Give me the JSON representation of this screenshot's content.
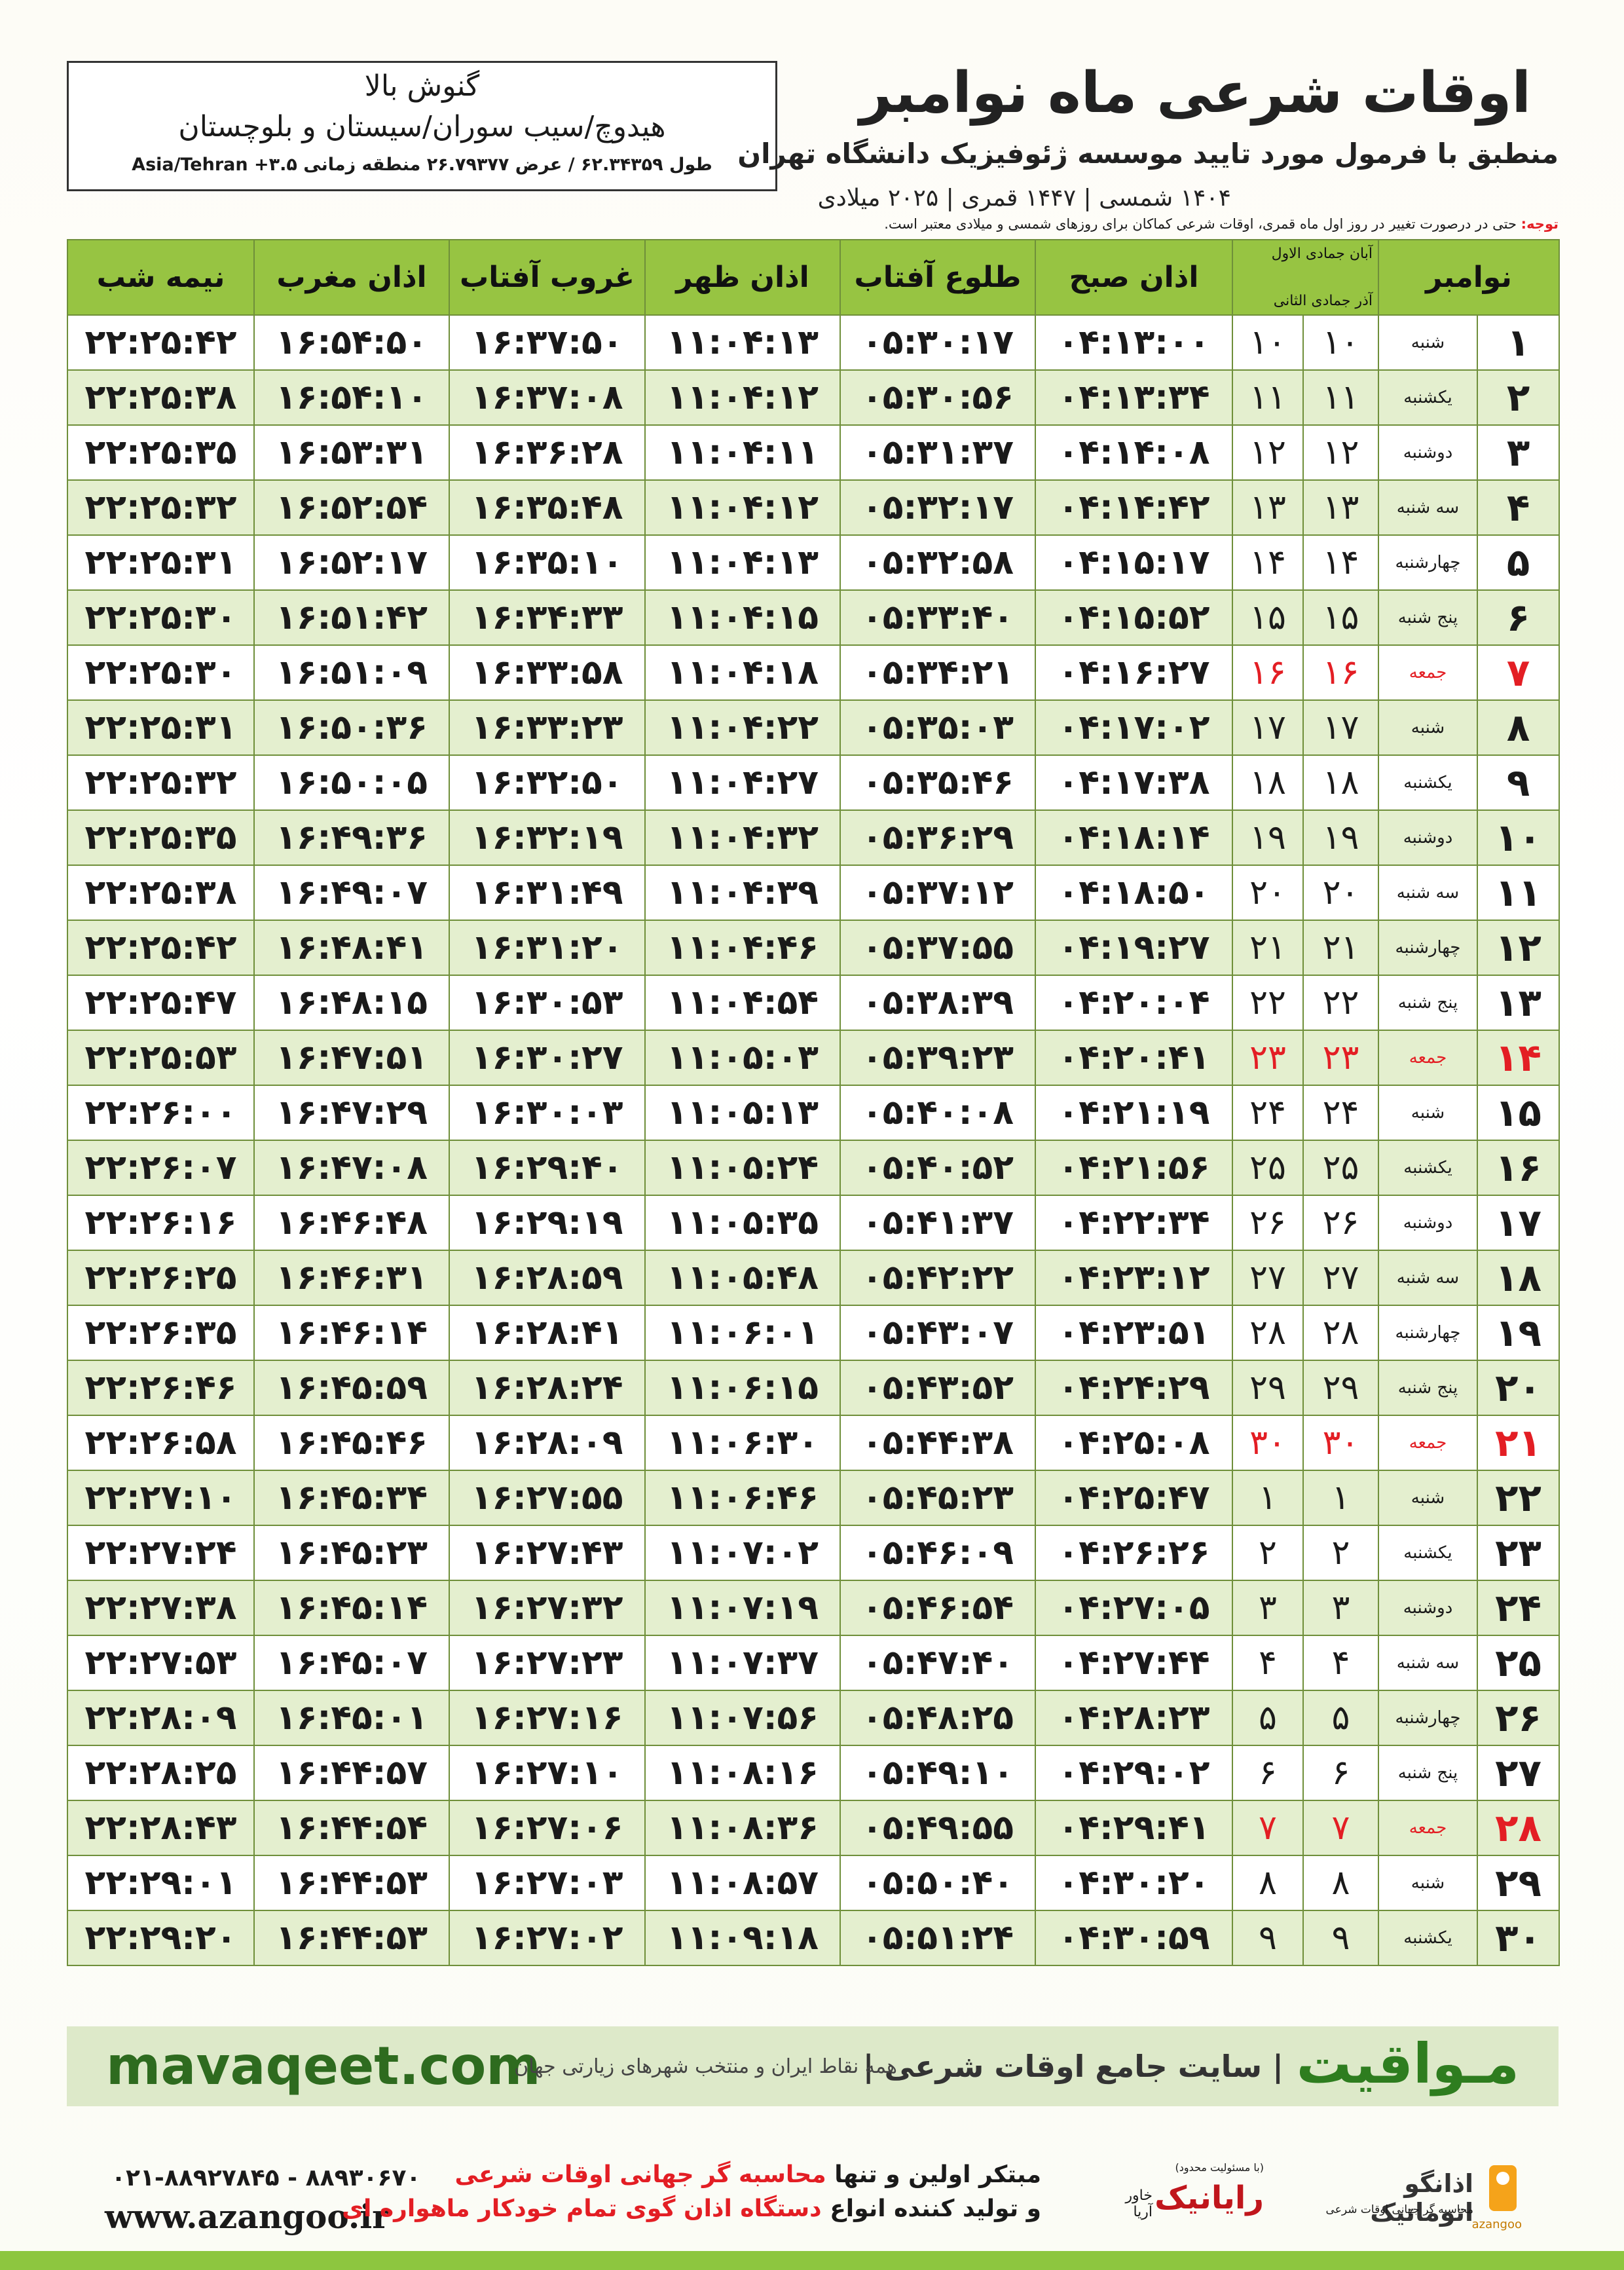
{
  "header": {
    "title": "اوقات شرعی ماه نوامبر",
    "subtitle": "منطبق با فرمول مورد تایید موسسه ژئوفیزیک دانشگاه تهران",
    "dates": "۱۴۰۴ شمسی | ۱۴۴۷ قمری | ۲۰۲۵ میلادی",
    "location": {
      "village": "گنوش بالا",
      "region": "هیدوچ/سیب سوران/سیستان و بلوچستان",
      "coords": "طول ۶۲.۳۴۳۵۹ / عرض ۲۶.۷۹۳۷۷ منطقه زمانی ۳.۵+ Asia/Tehran"
    }
  },
  "note": {
    "label": "توجه:",
    "text": "حتی در درصورت تغییر در روز اول ماه قمری، اوقات شرعی کماکان برای روزهای شمسی و میلادی معتبر است."
  },
  "table": {
    "columns": {
      "day": "نوامبر",
      "lunar_solar": [
        "آبان",
        "جمادی الاول",
        "آذر",
        "جمادی الثانی"
      ],
      "times": [
        "اذان صبح",
        "طلوع آفتاب",
        "اذان ظهر",
        "غروب آفتاب",
        "اذان مغرب",
        "نیمه شب"
      ]
    },
    "holiday_color": "#e31e24",
    "rows": [
      {
        "cells": [
          "۱",
          "شنبه",
          "۱۰",
          "۱۰",
          "۰۴:۱۳:۰۰",
          "۰۵:۳۰:۱۷",
          "۱۱:۰۴:۱۳",
          "۱۶:۳۷:۵۰",
          "۱۶:۵۴:۵۰",
          "۲۲:۲۵:۴۲"
        ]
      },
      {
        "cells": [
          "۲",
          "یکشنبه",
          "۱۱",
          "۱۱",
          "۰۴:۱۳:۳۴",
          "۰۵:۳۰:۵۶",
          "۱۱:۰۴:۱۲",
          "۱۶:۳۷:۰۸",
          "۱۶:۵۴:۱۰",
          "۲۲:۲۵:۳۸"
        ]
      },
      {
        "cells": [
          "۳",
          "دوشنبه",
          "۱۲",
          "۱۲",
          "۰۴:۱۴:۰۸",
          "۰۵:۳۱:۳۷",
          "۱۱:۰۴:۱۱",
          "۱۶:۳۶:۲۸",
          "۱۶:۵۳:۳۱",
          "۲۲:۲۵:۳۵"
        ]
      },
      {
        "cells": [
          "۴",
          "سه شنبه",
          "۱۳",
          "۱۳",
          "۰۴:۱۴:۴۲",
          "۰۵:۳۲:۱۷",
          "۱۱:۰۴:۱۲",
          "۱۶:۳۵:۴۸",
          "۱۶:۵۲:۵۴",
          "۲۲:۲۵:۳۲"
        ]
      },
      {
        "cells": [
          "۵",
          "چهارشنبه",
          "۱۴",
          "۱۴",
          "۰۴:۱۵:۱۷",
          "۰۵:۳۲:۵۸",
          "۱۱:۰۴:۱۳",
          "۱۶:۳۵:۱۰",
          "۱۶:۵۲:۱۷",
          "۲۲:۲۵:۳۱"
        ]
      },
      {
        "cells": [
          "۶",
          "پنج شنبه",
          "۱۵",
          "۱۵",
          "۰۴:۱۵:۵۲",
          "۰۵:۳۳:۴۰",
          "۱۱:۰۴:۱۵",
          "۱۶:۳۴:۳۳",
          "۱۶:۵۱:۴۲",
          "۲۲:۲۵:۳۰"
        ]
      },
      {
        "cells": [
          "۷",
          "جمعه",
          "۱۶",
          "۱۶",
          "۰۴:۱۶:۲۷",
          "۰۵:۳۴:۲۱",
          "۱۱:۰۴:۱۸",
          "۱۶:۳۳:۵۸",
          "۱۶:۵۱:۰۹",
          "۲۲:۲۵:۳۰"
        ],
        "holiday": true
      },
      {
        "cells": [
          "۸",
          "شنبه",
          "۱۷",
          "۱۷",
          "۰۴:۱۷:۰۲",
          "۰۵:۳۵:۰۳",
          "۱۱:۰۴:۲۲",
          "۱۶:۳۳:۲۳",
          "۱۶:۵۰:۳۶",
          "۲۲:۲۵:۳۱"
        ]
      },
      {
        "cells": [
          "۹",
          "یکشنبه",
          "۱۸",
          "۱۸",
          "۰۴:۱۷:۳۸",
          "۰۵:۳۵:۴۶",
          "۱۱:۰۴:۲۷",
          "۱۶:۳۲:۵۰",
          "۱۶:۵۰:۰۵",
          "۲۲:۲۵:۳۲"
        ]
      },
      {
        "cells": [
          "۱۰",
          "دوشنبه",
          "۱۹",
          "۱۹",
          "۰۴:۱۸:۱۴",
          "۰۵:۳۶:۲۹",
          "۱۱:۰۴:۳۲",
          "۱۶:۳۲:۱۹",
          "۱۶:۴۹:۳۶",
          "۲۲:۲۵:۳۵"
        ]
      },
      {
        "cells": [
          "۱۱",
          "سه شنبه",
          "۲۰",
          "۲۰",
          "۰۴:۱۸:۵۰",
          "۰۵:۳۷:۱۲",
          "۱۱:۰۴:۳۹",
          "۱۶:۳۱:۴۹",
          "۱۶:۴۹:۰۷",
          "۲۲:۲۵:۳۸"
        ]
      },
      {
        "cells": [
          "۱۲",
          "چهارشنبه",
          "۲۱",
          "۲۱",
          "۰۴:۱۹:۲۷",
          "۰۵:۳۷:۵۵",
          "۱۱:۰۴:۴۶",
          "۱۶:۳۱:۲۰",
          "۱۶:۴۸:۴۱",
          "۲۲:۲۵:۴۲"
        ]
      },
      {
        "cells": [
          "۱۳",
          "پنج شنبه",
          "۲۲",
          "۲۲",
          "۰۴:۲۰:۰۴",
          "۰۵:۳۸:۳۹",
          "۱۱:۰۴:۵۴",
          "۱۶:۳۰:۵۳",
          "۱۶:۴۸:۱۵",
          "۲۲:۲۵:۴۷"
        ]
      },
      {
        "cells": [
          "۱۴",
          "جمعه",
          "۲۳",
          "۲۳",
          "۰۴:۲۰:۴۱",
          "۰۵:۳۹:۲۳",
          "۱۱:۰۵:۰۳",
          "۱۶:۳۰:۲۷",
          "۱۶:۴۷:۵۱",
          "۲۲:۲۵:۵۳"
        ],
        "holiday": true
      },
      {
        "cells": [
          "۱۵",
          "شنبه",
          "۲۴",
          "۲۴",
          "۰۴:۲۱:۱۹",
          "۰۵:۴۰:۰۸",
          "۱۱:۰۵:۱۳",
          "۱۶:۳۰:۰۳",
          "۱۶:۴۷:۲۹",
          "۲۲:۲۶:۰۰"
        ]
      },
      {
        "cells": [
          "۱۶",
          "یکشنبه",
          "۲۵",
          "۲۵",
          "۰۴:۲۱:۵۶",
          "۰۵:۴۰:۵۲",
          "۱۱:۰۵:۲۴",
          "۱۶:۲۹:۴۰",
          "۱۶:۴۷:۰۸",
          "۲۲:۲۶:۰۷"
        ]
      },
      {
        "cells": [
          "۱۷",
          "دوشنبه",
          "۲۶",
          "۲۶",
          "۰۴:۲۲:۳۴",
          "۰۵:۴۱:۳۷",
          "۱۱:۰۵:۳۵",
          "۱۶:۲۹:۱۹",
          "۱۶:۴۶:۴۸",
          "۲۲:۲۶:۱۶"
        ]
      },
      {
        "cells": [
          "۱۸",
          "سه شنبه",
          "۲۷",
          "۲۷",
          "۰۴:۲۳:۱۲",
          "۰۵:۴۲:۲۲",
          "۱۱:۰۵:۴۸",
          "۱۶:۲۸:۵۹",
          "۱۶:۴۶:۳۱",
          "۲۲:۲۶:۲۵"
        ]
      },
      {
        "cells": [
          "۱۹",
          "چهارشنبه",
          "۲۸",
          "۲۸",
          "۰۴:۲۳:۵۱",
          "۰۵:۴۳:۰۷",
          "۱۱:۰۶:۰۱",
          "۱۶:۲۸:۴۱",
          "۱۶:۴۶:۱۴",
          "۲۲:۲۶:۳۵"
        ]
      },
      {
        "cells": [
          "۲۰",
          "پنج شنبه",
          "۲۹",
          "۲۹",
          "۰۴:۲۴:۲۹",
          "۰۵:۴۳:۵۲",
          "۱۱:۰۶:۱۵",
          "۱۶:۲۸:۲۴",
          "۱۶:۴۵:۵۹",
          "۲۲:۲۶:۴۶"
        ]
      },
      {
        "cells": [
          "۲۱",
          "جمعه",
          "۳۰",
          "۳۰",
          "۰۴:۲۵:۰۸",
          "۰۵:۴۴:۳۸",
          "۱۱:۰۶:۳۰",
          "۱۶:۲۸:۰۹",
          "۱۶:۴۵:۴۶",
          "۲۲:۲۶:۵۸"
        ],
        "holiday": true
      },
      {
        "cells": [
          "۲۲",
          "شنبه",
          "۱",
          "۱",
          "۰۴:۲۵:۴۷",
          "۰۵:۴۵:۲۳",
          "۱۱:۰۶:۴۶",
          "۱۶:۲۷:۵۵",
          "۱۶:۴۵:۳۴",
          "۲۲:۲۷:۱۰"
        ]
      },
      {
        "cells": [
          "۲۳",
          "یکشنبه",
          "۲",
          "۲",
          "۰۴:۲۶:۲۶",
          "۰۵:۴۶:۰۹",
          "۱۱:۰۷:۰۲",
          "۱۶:۲۷:۴۳",
          "۱۶:۴۵:۲۳",
          "۲۲:۲۷:۲۴"
        ]
      },
      {
        "cells": [
          "۲۴",
          "دوشنبه",
          "۳",
          "۳",
          "۰۴:۲۷:۰۵",
          "۰۵:۴۶:۵۴",
          "۱۱:۰۷:۱۹",
          "۱۶:۲۷:۳۲",
          "۱۶:۴۵:۱۴",
          "۲۲:۲۷:۳۸"
        ]
      },
      {
        "cells": [
          "۲۵",
          "سه شنبه",
          "۴",
          "۴",
          "۰۴:۲۷:۴۴",
          "۰۵:۴۷:۴۰",
          "۱۱:۰۷:۳۷",
          "۱۶:۲۷:۲۳",
          "۱۶:۴۵:۰۷",
          "۲۲:۲۷:۵۳"
        ]
      },
      {
        "cells": [
          "۲۶",
          "چهارشنبه",
          "۵",
          "۵",
          "۰۴:۲۸:۲۳",
          "۰۵:۴۸:۲۵",
          "۱۱:۰۷:۵۶",
          "۱۶:۲۷:۱۶",
          "۱۶:۴۵:۰۱",
          "۲۲:۲۸:۰۹"
        ]
      },
      {
        "cells": [
          "۲۷",
          "پنج شنبه",
          "۶",
          "۶",
          "۰۴:۲۹:۰۲",
          "۰۵:۴۹:۱۰",
          "۱۱:۰۸:۱۶",
          "۱۶:۲۷:۱۰",
          "۱۶:۴۴:۵۷",
          "۲۲:۲۸:۲۵"
        ]
      },
      {
        "cells": [
          "۲۸",
          "جمعه",
          "۷",
          "۷",
          "۰۴:۲۹:۴۱",
          "۰۵:۴۹:۵۵",
          "۱۱:۰۸:۳۶",
          "۱۶:۲۷:۰۶",
          "۱۶:۴۴:۵۴",
          "۲۲:۲۸:۴۳"
        ],
        "holiday": true
      },
      {
        "cells": [
          "۲۹",
          "شنبه",
          "۸",
          "۸",
          "۰۴:۳۰:۲۰",
          "۰۵:۵۰:۴۰",
          "۱۱:۰۸:۵۷",
          "۱۶:۲۷:۰۳",
          "۱۶:۴۴:۵۳",
          "۲۲:۲۹:۰۱"
        ]
      },
      {
        "cells": [
          "۳۰",
          "یکشنبه",
          "۹",
          "۹",
          "۰۴:۳۰:۵۹",
          "۰۵:۵۱:۲۴",
          "۱۱:۰۹:۱۸",
          "۱۶:۲۷:۰۲",
          "۱۶:۴۴:۵۳",
          "۲۲:۲۹:۲۰"
        ]
      }
    ]
  },
  "footer": {
    "site": "mavaqeet.com",
    "brand": "مـواقیت",
    "slogan": "سایت جامع اوقات شرعی",
    "tagline": "همه نقاط ایران و منتخب شهرهای زیارتی جهان",
    "phones": "۰۲۱-۸۸۹۲۷۸۴۵ - ۸۸۹۳۰۶۷۰",
    "web": "www.azangoo.ir",
    "line1": [
      "مبتکر اولین و تنها",
      "محاسبه گر جهانی اوقات شرعی"
    ],
    "line2": [
      "و تولید کننده انواع",
      "دستگاه اذان گوی تمام خودکار ماهواره ای"
    ],
    "logos": {
      "rayanik": "رایانیک",
      "khavar": "خاور آریا",
      "llc": "(با مسئولیت محدود)",
      "azangoo_fa": "اذانگو اتوماتیک",
      "azangoo_sub": "محاسبه گر جهانی اوقات شرعی",
      "azangoo_en": "azangoo"
    }
  }
}
